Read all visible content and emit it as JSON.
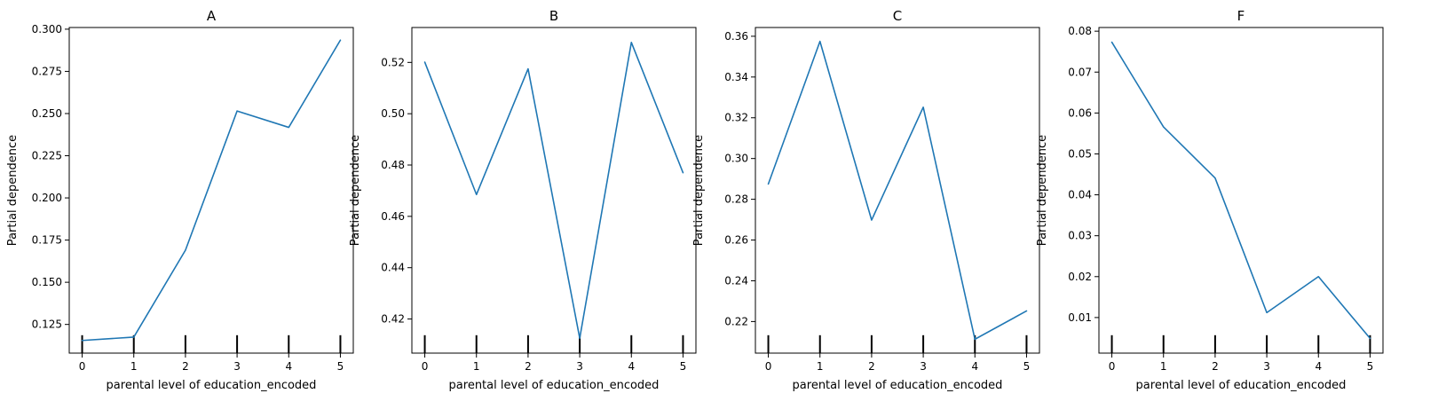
{
  "chart_data": [
    {
      "type": "line",
      "title": "A",
      "xlabel": "parental level of education_encoded",
      "ylabel": "Partial dependence",
      "x": [
        0,
        1,
        2,
        3,
        4,
        5
      ],
      "series": [
        {
          "values": [
            0.1155,
            0.1175,
            0.169,
            0.2515,
            0.2418,
            0.2935
          ],
          "color": "#1f77b4"
        }
      ],
      "rug_x": [
        0,
        1,
        2,
        3,
        4,
        5
      ],
      "xlim": [
        -0.25,
        5.25
      ],
      "ylim": [
        0.108,
        0.301
      ],
      "xticks": [
        "0",
        "1",
        "2",
        "3",
        "4",
        "5"
      ],
      "yticks": [
        "0.125",
        "0.150",
        "0.175",
        "0.200",
        "0.225",
        "0.250",
        "0.275",
        "0.300"
      ],
      "grid": false
    },
    {
      "type": "line",
      "title": "B",
      "xlabel": "parental level of education_encoded",
      "ylabel": "Partial dependence",
      "x": [
        0,
        1,
        2,
        3,
        4,
        5
      ],
      "series": [
        {
          "values": [
            0.5201,
            0.4685,
            0.5175,
            0.4125,
            0.5278,
            0.477
          ],
          "color": "#1f77b4"
        }
      ],
      "rug_x": [
        0,
        1,
        2,
        3,
        4,
        5
      ],
      "xlim": [
        -0.25,
        5.25
      ],
      "ylim": [
        0.4067,
        0.5336
      ],
      "xticks": [
        "0",
        "1",
        "2",
        "3",
        "4",
        "5"
      ],
      "yticks": [
        "0.42",
        "0.44",
        "0.46",
        "0.48",
        "0.50",
        "0.52"
      ],
      "grid": false
    },
    {
      "type": "line",
      "title": "C",
      "xlabel": "parental level of education_encoded",
      "ylabel": "Partial dependence",
      "x": [
        0,
        1,
        2,
        3,
        4,
        5
      ],
      "series": [
        {
          "values": [
            0.2875,
            0.3575,
            0.2698,
            0.3252,
            0.2113,
            0.2252
          ],
          "color": "#1f77b4"
        }
      ],
      "rug_x": [
        0,
        1,
        2,
        3,
        4,
        5
      ],
      "xlim": [
        -0.25,
        5.25
      ],
      "ylim": [
        0.2045,
        0.3643
      ],
      "xticks": [
        "0",
        "1",
        "2",
        "3",
        "4",
        "5"
      ],
      "yticks": [
        "0.22",
        "0.24",
        "0.26",
        "0.28",
        "0.30",
        "0.32",
        "0.34",
        "0.36"
      ],
      "grid": false
    },
    {
      "type": "line",
      "title": "F",
      "xlabel": "parental level of education_encoded",
      "ylabel": "Partial dependence",
      "x": [
        0,
        1,
        2,
        3,
        4,
        5
      ],
      "series": [
        {
          "values": [
            0.0773,
            0.0566,
            0.0441,
            0.0112,
            0.02,
            0.0049
          ],
          "color": "#1f77b4"
        }
      ],
      "rug_x": [
        0,
        1,
        2,
        3,
        4,
        5
      ],
      "xlim": [
        -0.25,
        5.25
      ],
      "ylim": [
        0.0013,
        0.0809
      ],
      "xticks": [
        "0",
        "1",
        "2",
        "3",
        "4",
        "5"
      ],
      "yticks": [
        "0.01",
        "0.02",
        "0.03",
        "0.04",
        "0.05",
        "0.06",
        "0.07",
        "0.08"
      ],
      "grid": false
    }
  ]
}
